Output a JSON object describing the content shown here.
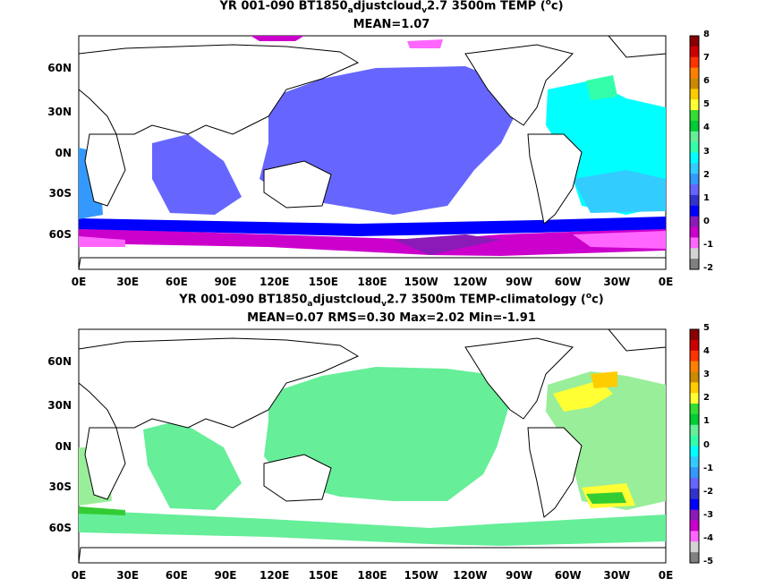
{
  "chart_data": [
    {
      "type": "heatmap",
      "title_parts": {
        "a": "YR 001-090 BT1850",
        "sub1": "a",
        "b": "djustcloud",
        "sub2": "v",
        "c": "2.7 3500m TEMP (",
        "sup": "o",
        "d": "c)"
      },
      "subtitle": "MEAN=1.07",
      "yticks": [
        "60N",
        "30N",
        "0N",
        "30S",
        "60S"
      ],
      "xticks": [
        "0E",
        "30E",
        "60E",
        "90E",
        "120E",
        "150E",
        "180E",
        "150W",
        "120W",
        "90W",
        "60W",
        "30W",
        "0E"
      ],
      "colorbar_ticks": [
        "8",
        "7",
        "6",
        "5",
        "4",
        "3",
        "2",
        "1",
        "0",
        "-1",
        "-2"
      ],
      "colorbar_colors": [
        "#8b0000",
        "#cc0000",
        "#ff3300",
        "#ff7f00",
        "#cc8a00",
        "#ffcc00",
        "#ffff33",
        "#33dd33",
        "#00cc33",
        "#66ee99",
        "#33ffaa",
        "#00ffff",
        "#33ccff",
        "#3399ff",
        "#6666ff",
        "#3333cc",
        "#0000ff",
        "#8b1ab8",
        "#cc00cc",
        "#ff66ff",
        "#d3d3d3",
        "#808080"
      ]
    },
    {
      "type": "heatmap",
      "title_parts": {
        "a": "YR 001-090 BT1850",
        "sub1": "a",
        "b": "djustcloud",
        "sub2": "v",
        "c": "2.7 3500m TEMP-climatology (",
        "sup": "o",
        "d": "c)"
      },
      "subtitle": "MEAN=0.07   RMS=0.30   Max=2.02   Min=-1.91",
      "yticks": [
        "60N",
        "30N",
        "0N",
        "30S",
        "60S"
      ],
      "xticks": [
        "0E",
        "30E",
        "60E",
        "90E",
        "120E",
        "150E",
        "180E",
        "150W",
        "120W",
        "90W",
        "60W",
        "30W",
        "0E"
      ],
      "colorbar_ticks": [
        "5",
        "4",
        "3",
        "2",
        "1",
        "0",
        "-1",
        "-2",
        "-3",
        "-4",
        "-5"
      ],
      "colorbar_colors": [
        "#8b0000",
        "#cc0000",
        "#ff3300",
        "#ff7f00",
        "#cc8a00",
        "#ffcc00",
        "#ffff33",
        "#33dd33",
        "#00cc33",
        "#66ee99",
        "#33ffaa",
        "#00ffff",
        "#33ccff",
        "#3399ff",
        "#6666ff",
        "#3333cc",
        "#0000ff",
        "#8b1ab8",
        "#cc00cc",
        "#ff66ff",
        "#d3d3d3",
        "#808080"
      ]
    }
  ]
}
